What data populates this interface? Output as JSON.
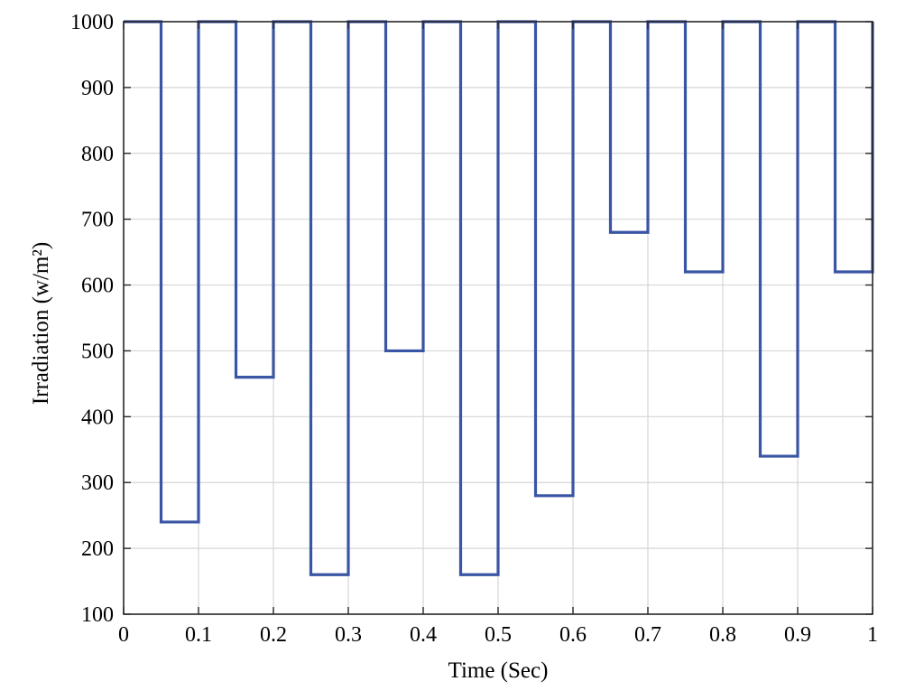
{
  "chart_data": {
    "type": "line",
    "xlabel": "Time (Sec)",
    "ylabel": "Irradiation (w/m²)",
    "xlim": [
      0,
      1
    ],
    "ylim": [
      100,
      1000
    ],
    "xticks": [
      0,
      0.1,
      0.2,
      0.3,
      0.4,
      0.5,
      0.6,
      0.7,
      0.8,
      0.9,
      1
    ],
    "xtick_labels": [
      "0",
      "0.1",
      "0.2",
      "0.3",
      "0.4",
      "0.5",
      "0.6",
      "0.7",
      "0.8",
      "0.9",
      "1"
    ],
    "yticks": [
      100,
      200,
      300,
      400,
      500,
      600,
      700,
      800,
      900,
      1000
    ],
    "ytick_labels": [
      "100",
      "200",
      "300",
      "400",
      "500",
      "600",
      "700",
      "800",
      "900",
      "1000"
    ],
    "grid": true,
    "series": [
      {
        "color": "#3a55a4",
        "step": "post",
        "x": [
          0,
          0.05,
          0.1,
          0.15,
          0.2,
          0.25,
          0.3,
          0.35,
          0.4,
          0.45,
          0.5,
          0.55,
          0.6,
          0.65,
          0.7,
          0.75,
          0.8,
          0.85,
          0.9,
          0.95,
          1
        ],
        "values": [
          1000,
          240,
          1000,
          460,
          1000,
          160,
          1000,
          500,
          1000,
          160,
          1000,
          280,
          1000,
          680,
          1000,
          620,
          1000,
          340,
          1000,
          620,
          1000
        ]
      }
    ]
  }
}
